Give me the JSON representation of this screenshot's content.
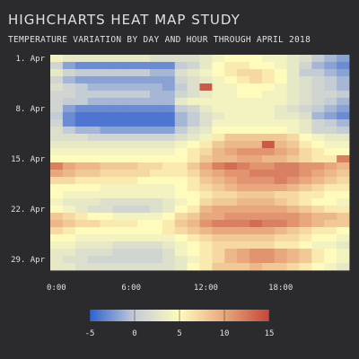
{
  "chart_data": {
    "type": "heatmap",
    "title": "HIGHCHARTS HEAT MAP STUDY",
    "subtitle": "TEMPERATURE VARIATION BY DAY AND HOUR THROUGH APRIL 2018",
    "x_tick_labels": [
      "0:00",
      "6:00",
      "12:00",
      "18:00"
    ],
    "x_tick_hours": [
      0,
      6,
      12,
      18
    ],
    "y_tick_labels": [
      "1. Apr",
      "8. Apr",
      "15. Apr",
      "22. Apr",
      "29. Apr"
    ],
    "y_tick_days": [
      1,
      8,
      15,
      22,
      29
    ],
    "hours": [
      0,
      23
    ],
    "days": [
      1,
      30
    ],
    "color_axis": {
      "min": -5,
      "max": 15,
      "tick_labels": [
        "-5",
        "0",
        "5",
        "10",
        "15"
      ],
      "tick_values": [
        -5,
        0,
        5,
        10,
        15
      ],
      "stops": [
        {
          "value": -5,
          "color": "#3060cf"
        },
        {
          "value": 0,
          "color": "#c4ccd6"
        },
        {
          "value": 5,
          "color": "#fffbbc"
        },
        {
          "value": 10,
          "color": "#e8a77c"
        },
        {
          "value": 15,
          "color": "#c4463a"
        }
      ]
    },
    "values": [
      [
        4,
        3,
        3,
        3,
        3,
        3,
        3,
        3,
        2,
        2,
        2,
        2,
        3,
        4,
        5,
        5,
        5,
        4,
        4,
        3,
        2,
        0,
        -1,
        -2
      ],
      [
        1,
        -2,
        -3,
        -3,
        -3,
        -3,
        -3,
        -3,
        -3,
        -3,
        0,
        1,
        3,
        5,
        6,
        6,
        5,
        5,
        4,
        3,
        1,
        -1,
        -2,
        -3
      ],
      [
        3,
        1,
        0,
        0,
        0,
        0,
        0,
        0,
        -1,
        -1,
        2,
        3,
        4,
        5,
        6,
        7,
        7,
        6,
        5,
        3,
        0,
        0,
        -1,
        -2
      ],
      [
        1,
        -1,
        -2,
        -2,
        -2,
        -2,
        -2,
        -2,
        -2,
        -2,
        1,
        2,
        3,
        4,
        5,
        6,
        7,
        6,
        5,
        3,
        2,
        1,
        0,
        -1
      ],
      [
        2,
        1,
        0,
        -1,
        -1,
        -1,
        -1,
        -1,
        -1,
        -2,
        0,
        2,
        14,
        4,
        4,
        5,
        5,
        5,
        4,
        3,
        2,
        1,
        0,
        -1
      ],
      [
        1,
        1,
        0,
        0,
        0,
        0,
        0,
        0,
        -1,
        -1,
        1,
        2,
        3,
        4,
        4,
        5,
        5,
        4,
        4,
        3,
        2,
        1,
        1,
        0
      ],
      [
        1,
        0,
        0,
        -1,
        -1,
        -1,
        -1,
        -1,
        -1,
        -1,
        3,
        4,
        4,
        4,
        4,
        4,
        4,
        4,
        4,
        3,
        2,
        1,
        0,
        -1
      ],
      [
        1,
        -2,
        -3,
        -3,
        -3,
        -3,
        -3,
        -3,
        -3,
        -3,
        0,
        1,
        3,
        4,
        4,
        4,
        4,
        4,
        3,
        2,
        1,
        0,
        -1,
        -2
      ],
      [
        0,
        -3,
        -4,
        -4,
        -4,
        -4,
        -4,
        -4,
        -4,
        -4,
        -1,
        0,
        2,
        3,
        4,
        4,
        4,
        4,
        3,
        3,
        2,
        -1,
        -2,
        -3
      ],
      [
        1,
        -3,
        -4,
        -4,
        -4,
        -4,
        -4,
        -4,
        -4,
        -4,
        -1,
        0,
        2,
        4,
        4,
        4,
        4,
        4,
        4,
        4,
        3,
        1,
        0,
        -1
      ],
      [
        2,
        0,
        -1,
        -1,
        -2,
        -2,
        -2,
        -2,
        -2,
        -2,
        0,
        2,
        3,
        5,
        5,
        5,
        5,
        5,
        5,
        4,
        3,
        1,
        1,
        0
      ],
      [
        2,
        2,
        2,
        1,
        1,
        1,
        1,
        1,
        1,
        1,
        2,
        3,
        4,
        6,
        8,
        8,
        8,
        8,
        8,
        7,
        5,
        4,
        3,
        3
      ],
      [
        3,
        3,
        3,
        3,
        3,
        3,
        3,
        3,
        3,
        3,
        4,
        5,
        6,
        8,
        9,
        9,
        9,
        14,
        9,
        8,
        6,
        5,
        4,
        4
      ],
      [
        4,
        4,
        4,
        4,
        4,
        4,
        4,
        4,
        4,
        4,
        5,
        6,
        7,
        9,
        10,
        11,
        11,
        11,
        10,
        9,
        7,
        6,
        5,
        5
      ],
      [
        5,
        5,
        5,
        5,
        5,
        5,
        5,
        5,
        5,
        5,
        5,
        6,
        8,
        9,
        9,
        10,
        10,
        9,
        9,
        8,
        7,
        6,
        6,
        12
      ],
      [
        12,
        10,
        9,
        9,
        8,
        8,
        8,
        7,
        7,
        6,
        6,
        8,
        10,
        12,
        13,
        12,
        11,
        11,
        12,
        12,
        11,
        11,
        10,
        9
      ],
      [
        10,
        9,
        8,
        8,
        7,
        7,
        7,
        7,
        6,
        6,
        6,
        7,
        9,
        10,
        11,
        11,
        12,
        12,
        12,
        12,
        11,
        10,
        9,
        8
      ],
      [
        7,
        7,
        6,
        6,
        6,
        6,
        6,
        5,
        5,
        5,
        5,
        6,
        8,
        9,
        10,
        11,
        11,
        11,
        12,
        11,
        10,
        9,
        8,
        7
      ],
      [
        5,
        5,
        5,
        5,
        4,
        4,
        4,
        4,
        4,
        4,
        5,
        6,
        7,
        8,
        9,
        10,
        10,
        10,
        10,
        9,
        8,
        7,
        6,
        6
      ],
      [
        5,
        4,
        4,
        4,
        4,
        4,
        4,
        4,
        4,
        4,
        5,
        5,
        6,
        7,
        7,
        8,
        8,
        8,
        7,
        7,
        6,
        6,
        5,
        5
      ],
      [
        4,
        3,
        3,
        3,
        2,
        2,
        2,
        2,
        2,
        3,
        4,
        5,
        7,
        8,
        8,
        9,
        9,
        9,
        8,
        7,
        6,
        5,
        5,
        4
      ],
      [
        5,
        4,
        3,
        2,
        2,
        1,
        1,
        1,
        2,
        3,
        5,
        6,
        9,
        10,
        10,
        10,
        10,
        10,
        10,
        9,
        8,
        7,
        6,
        6
      ],
      [
        8,
        7,
        6,
        5,
        5,
        4,
        4,
        4,
        4,
        5,
        7,
        8,
        10,
        10,
        11,
        11,
        11,
        11,
        11,
        11,
        10,
        9,
        9,
        8
      ],
      [
        9,
        8,
        7,
        7,
        6,
        6,
        6,
        5,
        5,
        6,
        8,
        9,
        11,
        12,
        12,
        12,
        13,
        12,
        12,
        11,
        10,
        9,
        8,
        8
      ],
      [
        7,
        6,
        5,
        5,
        5,
        5,
        5,
        5,
        5,
        6,
        7,
        8,
        9,
        10,
        10,
        10,
        10,
        10,
        9,
        8,
        7,
        6,
        6,
        5
      ],
      [
        5,
        5,
        4,
        4,
        4,
        4,
        4,
        4,
        4,
        4,
        5,
        6,
        7,
        8,
        8,
        8,
        8,
        8,
        7,
        7,
        6,
        5,
        5,
        4
      ],
      [
        4,
        4,
        3,
        3,
        3,
        2,
        2,
        2,
        2,
        3,
        4,
        5,
        6,
        7,
        7,
        7,
        7,
        7,
        6,
        6,
        5,
        4,
        4,
        3
      ],
      [
        3,
        3,
        2,
        2,
        2,
        1,
        1,
        1,
        1,
        2,
        4,
        5,
        6,
        7,
        9,
        10,
        11,
        11,
        10,
        9,
        8,
        6,
        5,
        4
      ],
      [
        3,
        2,
        2,
        1,
        1,
        1,
        1,
        1,
        1,
        2,
        3,
        4,
        6,
        7,
        9,
        10,
        11,
        11,
        10,
        9,
        8,
        6,
        5,
        4
      ],
      [
        3,
        3,
        2,
        2,
        2,
        2,
        2,
        2,
        2,
        2,
        3,
        5,
        6,
        8,
        8,
        8,
        9,
        8,
        8,
        7,
        6,
        5,
        4,
        3
      ]
    ]
  }
}
